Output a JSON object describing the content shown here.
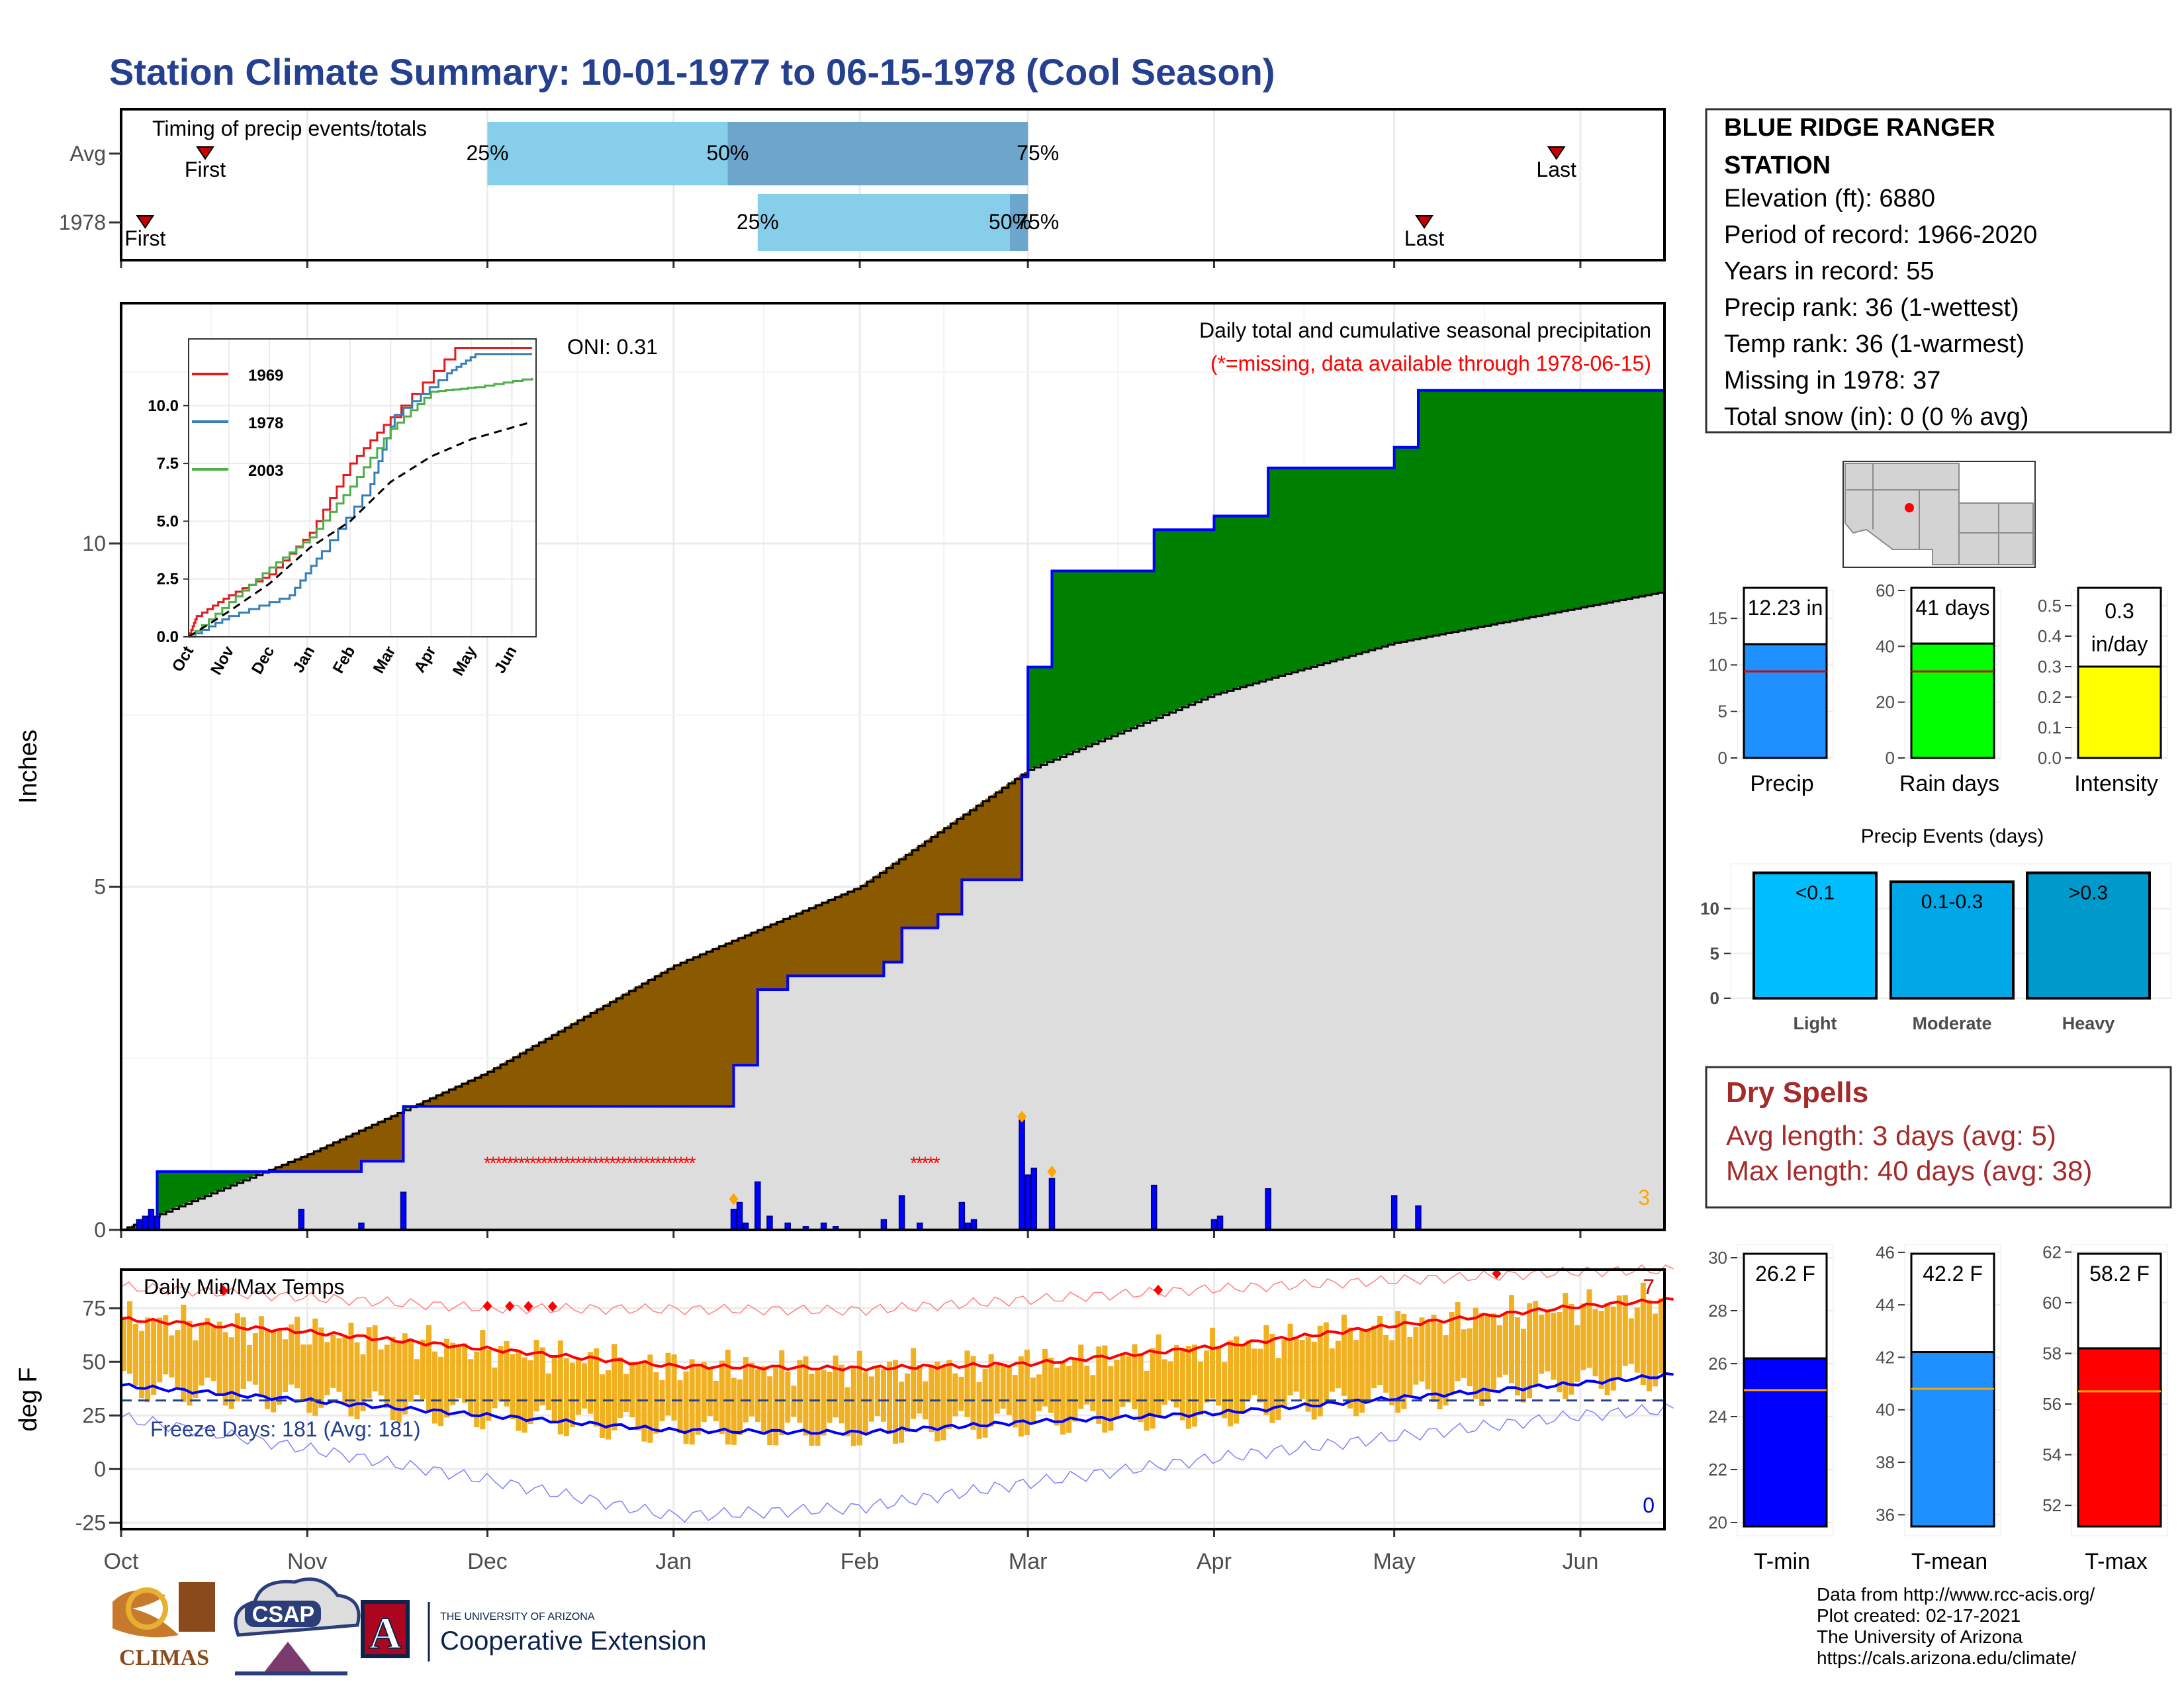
{
  "title": "Station Climate Summary: 10-01-1977 to 06-15-1978 (Cool Season)",
  "station": {
    "name_line1": "BLUE RIDGE RANGER",
    "name_line2": "STATION",
    "lines": [
      "Elevation (ft): 6880",
      "Period of record: 1966-2020",
      "Years in record: 55",
      "Precip rank: 36 (1-wettest)",
      "Temp rank: 36 (1-warmest)",
      "Missing in 1978: 37",
      "Total snow (in): 0 (0 % avg)"
    ]
  },
  "timing": {
    "label": "Timing of precip events/totals",
    "rows": [
      "Avg",
      "1978"
    ],
    "avg": {
      "first": "First",
      "last": "Last",
      "p25": "25%",
      "p50": "50%",
      "p75": "75%"
    },
    "y1978": {
      "first": "First",
      "last": "Last",
      "p25": "25%",
      "p50": "50%",
      "p75": "75%"
    }
  },
  "precip_panel": {
    "ylabel": "Inches",
    "title": "Daily total and cumulative seasonal precipitation",
    "missing_note": "(*=missing, data available through 1978-06-15)",
    "oni": "ONI: 0.31",
    "count_label": "3",
    "yticks": [
      "0",
      "5",
      "10"
    ]
  },
  "inset": {
    "legend": [
      "1969",
      "1978",
      "2003"
    ],
    "yticks": [
      "0.0",
      "2.5",
      "5.0",
      "7.5",
      "10.0"
    ],
    "xticks": [
      "Oct",
      "Nov",
      "Dec",
      "Jan",
      "Feb",
      "Mar",
      "Apr",
      "May",
      "Jun"
    ]
  },
  "temp_panel": {
    "ylabel": "deg F",
    "title": "Daily Min/Max Temps",
    "freeze": "Freeze Days: 181 (Avg: 181)",
    "count_hi": "7",
    "count_lo": "0",
    "yticks": [
      "-25",
      "0",
      "25",
      "50",
      "75"
    ]
  },
  "months": [
    "Oct",
    "Nov",
    "Dec",
    "Jan",
    "Feb",
    "Mar",
    "Apr",
    "May",
    "Jun"
  ],
  "bars_precip": {
    "panels": [
      {
        "value_label": "12.23 in",
        "xlabel": "Precip",
        "yticks": [
          "0",
          "5",
          "10",
          "15"
        ]
      },
      {
        "value_label": "41 days",
        "xlabel": "Rain days",
        "yticks": [
          "0",
          "20",
          "40",
          "60"
        ]
      },
      {
        "value_label": "0.3",
        "value_label2": "in/day",
        "xlabel": "Intensity",
        "yticks": [
          "0.0",
          "0.1",
          "0.2",
          "0.3",
          "0.4",
          "0.5"
        ]
      }
    ]
  },
  "events": {
    "title": "Precip Events (days)",
    "bars": [
      {
        "label": "<0.1",
        "xlabel": "Light"
      },
      {
        "label": "0.1-0.3",
        "xlabel": "Moderate"
      },
      {
        "label": ">0.3",
        "xlabel": "Heavy"
      }
    ],
    "yticks": [
      "0",
      "5",
      "10"
    ]
  },
  "dry_spells": {
    "title": "Dry Spells",
    "avg": "Avg length: 3 days (avg: 5)",
    "max": "Max length: 40 days (avg: 38)"
  },
  "temp_bars": [
    {
      "value_label": "26.2 F",
      "xlabel": "T-min",
      "yticks": [
        "20",
        "22",
        "24",
        "26",
        "28",
        "30"
      ]
    },
    {
      "value_label": "42.2 F",
      "xlabel": "T-mean",
      "yticks": [
        "36",
        "38",
        "40",
        "42",
        "44",
        "46"
      ]
    },
    {
      "value_label": "58.2 F",
      "xlabel": "T-max",
      "yticks": [
        "52",
        "54",
        "56",
        "58",
        "60",
        "62"
      ]
    }
  ],
  "footer": {
    "lines": [
      "Data from http://www.rcc-acis.org/",
      "Plot created: 02-17-2021",
      "The University of Arizona",
      "https://cals.arizona.edu/climate/"
    ],
    "logo_climas": "CLIMAS",
    "logo_csap": "CSAP",
    "logo_ua_small": "THE UNIVERSITY OF ARIZONA",
    "logo_ua_big": "Cooperative Extension",
    "logo_ua_letter": "A"
  },
  "colors": {
    "title": "#24408e",
    "wet": "#008000",
    "dry": "#8b5a00",
    "avg_fill": "#dddddd",
    "blue_line": "#0000ff",
    "missing": "#ff0000",
    "temp_bar": "#f0b020",
    "tmax": "#ff0000",
    "tmin": "#0000ff",
    "precip_bar": "#1e90ff",
    "rain_bar": "#00ff00",
    "intensity_bar": "#ffff00",
    "event_light": "#00bfff",
    "event_mod": "#00a8e8",
    "event_heavy": "#0099cc",
    "tmin_bar": "#0000ff",
    "tmean_bar": "#1e90ff",
    "tmax_bar": "#ff0000"
  },
  "chart_data": [
    {
      "type": "bar",
      "name": "timing",
      "rows": [
        "Avg",
        "1978"
      ],
      "avg": {
        "first": "1977-10-15",
        "p25": "1977-12-01",
        "p50": "1978-01-10",
        "p75": "1978-03-01",
        "last": "1978-05-28"
      },
      "y1978": {
        "first": "1977-10-05",
        "p25": "1978-01-15",
        "p50": "1978-02-26",
        "p75": "1978-03-01",
        "last": "1978-05-06"
      }
    },
    {
      "type": "area",
      "name": "cumulative_precip",
      "x_range": [
        "1977-10-01",
        "1978-06-15"
      ],
      "ylim": [
        0,
        13.5
      ],
      "observed_cumulative": [
        [
          "1977-10-01",
          0
        ],
        [
          "1977-10-07",
          0.85
        ],
        [
          "1977-11-01",
          0.85
        ],
        [
          "1977-11-10",
          1.0
        ],
        [
          "1977-11-17",
          1.8
        ],
        [
          "1977-12-31",
          1.8
        ],
        [
          "1978-01-10",
          1.8
        ],
        [
          "1978-01-11",
          2.4
        ],
        [
          "1978-01-15",
          3.5
        ],
        [
          "1978-01-20",
          3.7
        ],
        [
          "1978-02-05",
          3.9
        ],
        [
          "1978-02-08",
          4.4
        ],
        [
          "1978-02-14",
          4.6
        ],
        [
          "1978-02-18",
          5.1
        ],
        [
          "1978-02-28",
          6.6
        ],
        [
          "1978-03-01",
          8.2
        ],
        [
          "1978-03-05",
          9.6
        ],
        [
          "1978-03-22",
          10.2
        ],
        [
          "1978-04-01",
          10.4
        ],
        [
          "1978-04-10",
          11.1
        ],
        [
          "1978-05-01",
          11.4
        ],
        [
          "1978-05-05",
          12.23
        ],
        [
          "1978-06-15",
          12.23
        ]
      ],
      "average_cumulative": [
        [
          "1977-10-01",
          0
        ],
        [
          "1977-11-01",
          1.1
        ],
        [
          "1977-12-01",
          2.3
        ],
        [
          "1978-01-01",
          3.85
        ],
        [
          "1978-02-01",
          5.0
        ],
        [
          "1978-03-01",
          6.7
        ],
        [
          "1978-04-01",
          7.8
        ],
        [
          "1978-05-01",
          8.55
        ],
        [
          "1978-06-15",
          9.3
        ]
      ],
      "daily_precip": [
        [
          "1977-10-04",
          0.15
        ],
        [
          "1977-10-05",
          0.2
        ],
        [
          "1977-10-06",
          0.3
        ],
        [
          "1977-10-07",
          0.2
        ],
        [
          "1977-10-31",
          0.3
        ],
        [
          "1977-11-10",
          0.1
        ],
        [
          "1977-11-17",
          0.55
        ],
        [
          "1978-01-11",
          0.3
        ],
        [
          "1978-01-12",
          0.4
        ],
        [
          "1978-01-13",
          0.1
        ],
        [
          "1978-01-15",
          0.7
        ],
        [
          "1978-01-17",
          0.2
        ],
        [
          "1978-01-20",
          0.1
        ],
        [
          "1978-01-23",
          0.05
        ],
        [
          "1978-01-26",
          0.1
        ],
        [
          "1978-01-28",
          0.05
        ],
        [
          "1978-02-05",
          0.15
        ],
        [
          "1978-02-08",
          0.5
        ],
        [
          "1978-02-11",
          0.1
        ],
        [
          "1978-02-18",
          0.4
        ],
        [
          "1978-02-19",
          0.1
        ],
        [
          "1978-02-20",
          0.15
        ],
        [
          "1978-02-28",
          1.6
        ],
        [
          "1978-03-01",
          0.8
        ],
        [
          "1978-03-02",
          0.9
        ],
        [
          "1978-03-05",
          0.75
        ],
        [
          "1978-03-22",
          0.65
        ],
        [
          "1978-04-01",
          0.15
        ],
        [
          "1978-04-02",
          0.2
        ],
        [
          "1978-04-10",
          0.6
        ],
        [
          "1978-05-01",
          0.5
        ],
        [
          "1978-05-05",
          0.35
        ]
      ],
      "missing_ranges": [
        [
          "1977-12-01",
          "1978-01-05"
        ],
        [
          "1978-02-10",
          "1978-02-14"
        ]
      ]
    },
    {
      "type": "line",
      "name": "inset_cumulative",
      "ylim": [
        0,
        12.5
      ],
      "series": [
        {
          "name": "1969",
          "points": [
            [
              0,
              0
            ],
            [
              0.2,
              0.9
            ],
            [
              1,
              1.8
            ],
            [
              2,
              2.7
            ],
            [
              3,
              4.5
            ],
            [
              4,
              7.5
            ],
            [
              5,
              9.5
            ],
            [
              6.6,
              12.5
            ],
            [
              8.5,
              12.5
            ]
          ]
        },
        {
          "name": "1978",
          "points": [
            [
              0,
              0
            ],
            [
              1,
              0.9
            ],
            [
              2.5,
              1.8
            ],
            [
              3.3,
              3.7
            ],
            [
              4.5,
              6.6
            ],
            [
              5.1,
              9.6
            ],
            [
              6.4,
              11.4
            ],
            [
              7.1,
              12.23
            ],
            [
              8.5,
              12.23
            ]
          ]
        },
        {
          "name": "2003",
          "points": [
            [
              0,
              0
            ],
            [
              1,
              1.5
            ],
            [
              2,
              3.0
            ],
            [
              3,
              4.3
            ],
            [
              4,
              6.5
            ],
            [
              5,
              9.0
            ],
            [
              6,
              10.6
            ],
            [
              7.1,
              10.8
            ],
            [
              8.5,
              11.2
            ]
          ]
        }
      ],
      "average": [
        [
          0,
          0
        ],
        [
          1,
          1.1
        ],
        [
          2,
          2.3
        ],
        [
          3,
          3.85
        ],
        [
          4,
          5.0
        ],
        [
          5,
          6.7
        ],
        [
          6,
          7.8
        ],
        [
          7,
          8.55
        ],
        [
          8.5,
          9.3
        ]
      ]
    },
    {
      "type": "line",
      "name": "daily_temps",
      "ylim": [
        -28,
        93
      ],
      "tmax_smoothed": [
        [
          0,
          70
        ],
        [
          1,
          64
        ],
        [
          2,
          56
        ],
        [
          3,
          48
        ],
        [
          4,
          47
        ],
        [
          5,
          49
        ],
        [
          6,
          57
        ],
        [
          7,
          67
        ],
        [
          8,
          76
        ],
        [
          8.5,
          79
        ]
      ],
      "tmin_smoothed": [
        [
          0,
          39
        ],
        [
          1,
          32
        ],
        [
          2,
          25
        ],
        [
          3,
          18
        ],
        [
          4,
          17
        ],
        [
          5,
          22
        ],
        [
          6,
          26
        ],
        [
          7,
          33
        ],
        [
          8,
          40
        ],
        [
          8.5,
          44
        ]
      ],
      "record_high": [
        [
          0,
          85
        ],
        [
          2,
          75
        ],
        [
          4,
          74
        ],
        [
          6,
          84
        ],
        [
          8,
          92
        ],
        [
          8.5,
          93
        ]
      ],
      "record_low": [
        [
          0,
          24
        ],
        [
          2,
          -5
        ],
        [
          3,
          -22
        ],
        [
          4,
          -18
        ],
        [
          6,
          5
        ],
        [
          8,
          25
        ],
        [
          8.5,
          28
        ]
      ],
      "freeze_line": 32
    },
    {
      "type": "bar",
      "name": "precip_totals",
      "panels": [
        {
          "category": "Precip",
          "value": 12.23,
          "average": 9.3,
          "ylim": [
            0,
            18
          ]
        },
        {
          "category": "Rain days",
          "value": 41,
          "average": 31,
          "ylim": [
            0,
            60
          ]
        },
        {
          "category": "Intensity",
          "value": 0.3,
          "average": 0.3,
          "ylim": [
            0,
            0.55
          ]
        }
      ]
    },
    {
      "type": "bar",
      "name": "precip_events",
      "categories": [
        "Light",
        "Moderate",
        "Heavy"
      ],
      "values": [
        14,
        13,
        14
      ],
      "ylim": [
        0,
        15
      ]
    },
    {
      "type": "bar",
      "name": "temp_means",
      "panels": [
        {
          "category": "T-min",
          "value": 26.2,
          "average": 25.0,
          "ylim": [
            19.5,
            30.5
          ]
        },
        {
          "category": "T-mean",
          "value": 42.2,
          "average": 40.8,
          "ylim": [
            35.2,
            46.3
          ]
        },
        {
          "category": "T-max",
          "value": 58.2,
          "average": 56.5,
          "ylim": [
            50.8,
            62.3
          ]
        }
      ]
    }
  ]
}
